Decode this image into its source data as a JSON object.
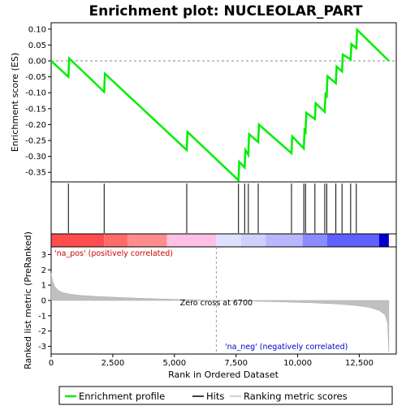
{
  "chart_data": {
    "type": "line",
    "title": "Enrichment plot: NUCLEOLAR_PART",
    "es_panel": {
      "ylabel": "Enrichment score (ES)",
      "ylim": [
        -0.38,
        0.12
      ],
      "yticks": [
        0.1,
        0.05,
        0.0,
        -0.05,
        -0.1,
        -0.15,
        -0.2,
        -0.25,
        -0.3,
        -0.35
      ],
      "ytick_labels": [
        "0.10",
        "0.05",
        "0.00",
        "-0.05",
        "-0.10",
        "-0.15",
        "-0.20",
        "-0.25",
        "-0.30",
        "-0.35"
      ],
      "series_name": "Enrichment profile",
      "color": "#00ee00",
      "points": [
        [
          0,
          0.0
        ],
        [
          700,
          -0.05
        ],
        [
          730,
          0.008
        ],
        [
          2150,
          -0.097
        ],
        [
          2180,
          -0.04
        ],
        [
          5500,
          -0.28
        ],
        [
          5530,
          -0.223
        ],
        [
          7600,
          -0.375
        ],
        [
          7630,
          -0.317
        ],
        [
          7850,
          -0.335
        ],
        [
          7880,
          -0.28
        ],
        [
          8000,
          -0.295
        ],
        [
          8030,
          -0.23
        ],
        [
          8400,
          -0.255
        ],
        [
          8430,
          -0.2
        ],
        [
          9750,
          -0.29
        ],
        [
          9780,
          -0.237
        ],
        [
          10250,
          -0.275
        ],
        [
          10280,
          -0.218
        ],
        [
          10320,
          -0.223
        ],
        [
          10350,
          -0.163
        ],
        [
          10700,
          -0.183
        ],
        [
          10730,
          -0.133
        ],
        [
          11100,
          -0.16
        ],
        [
          11130,
          -0.105
        ],
        [
          11180,
          -0.11
        ],
        [
          11210,
          -0.048
        ],
        [
          11550,
          -0.07
        ],
        [
          11580,
          -0.018
        ],
        [
          11800,
          -0.033
        ],
        [
          11830,
          0.02
        ],
        [
          12150,
          0.005
        ],
        [
          12180,
          0.053
        ],
        [
          12380,
          0.04
        ],
        [
          12410,
          0.098
        ],
        [
          13700,
          0.0
        ]
      ]
    },
    "hits": [
      700,
      2150,
      5500,
      7600,
      7850,
      8000,
      8400,
      9750,
      10250,
      10320,
      10700,
      11100,
      11180,
      11550,
      11800,
      12150,
      12380
    ],
    "metric_panel": {
      "ylabel": "Ranked list metric (PreRanked)",
      "ylim": [
        -3.5,
        3.5
      ],
      "yticks": [
        3,
        2,
        1,
        0,
        -1,
        -2,
        -3
      ],
      "ytick_labels": [
        "3",
        "2",
        "1",
        "0",
        "-1",
        "-2",
        "-3"
      ],
      "series_name": "Ranking metric scores",
      "profile": [
        [
          0,
          1.8
        ],
        [
          50,
          1.3
        ],
        [
          150,
          0.9
        ],
        [
          300,
          0.65
        ],
        [
          500,
          0.5
        ],
        [
          800,
          0.4
        ],
        [
          1200,
          0.33
        ],
        [
          2000,
          0.25
        ],
        [
          3000,
          0.18
        ],
        [
          4000,
          0.12
        ],
        [
          5000,
          0.07
        ],
        [
          6000,
          0.03
        ],
        [
          6700,
          0.0
        ],
        [
          7500,
          -0.03
        ],
        [
          8500,
          -0.06
        ],
        [
          9500,
          -0.1
        ],
        [
          10500,
          -0.15
        ],
        [
          11500,
          -0.22
        ],
        [
          12300,
          -0.32
        ],
        [
          12900,
          -0.45
        ],
        [
          13300,
          -0.65
        ],
        [
          13550,
          -0.95
        ],
        [
          13650,
          -1.5
        ],
        [
          13700,
          -3.4
        ]
      ],
      "zero_cross": 6700,
      "zero_cross_label": "Zero cross at 6700",
      "pos_label": "'na_pos' (positively correlated)",
      "neg_label": "'na_neg' (negatively correlated)"
    },
    "x_axis": {
      "label": "Rank in Ordered Dataset",
      "xlim": [
        0,
        14000
      ],
      "ticks": [
        0,
        2500,
        5000,
        7500,
        10000,
        12500
      ],
      "tick_labels": [
        "0",
        "2,500",
        "5,000",
        "7,500",
        "10,000",
        "12,500"
      ]
    },
    "colorbar_segments": [
      {
        "x0": 0,
        "x1": 2150,
        "color": "#ff4d4d"
      },
      {
        "x0": 2150,
        "x1": 3100,
        "color": "#ff6b6b"
      },
      {
        "x0": 3100,
        "x1": 4700,
        "color": "#ff8c8c"
      },
      {
        "x0": 4700,
        "x1": 6700,
        "color": "#ffc0e6"
      },
      {
        "x0": 6700,
        "x1": 7700,
        "color": "#e0e0ff"
      },
      {
        "x0": 7700,
        "x1": 8700,
        "color": "#d0d0ff"
      },
      {
        "x0": 8700,
        "x1": 10200,
        "color": "#b8b8ff"
      },
      {
        "x0": 10200,
        "x1": 11200,
        "color": "#8c8cff"
      },
      {
        "x0": 11200,
        "x1": 13300,
        "color": "#6060ff"
      },
      {
        "x0": 13300,
        "x1": 13700,
        "color": "#0000cc"
      }
    ],
    "legend": [
      {
        "label": "Enrichment profile",
        "color": "#00ee00"
      },
      {
        "label": "Hits",
        "color": "#000000"
      },
      {
        "label": "Ranking metric scores",
        "color": "#c0c0c0"
      }
    ]
  }
}
